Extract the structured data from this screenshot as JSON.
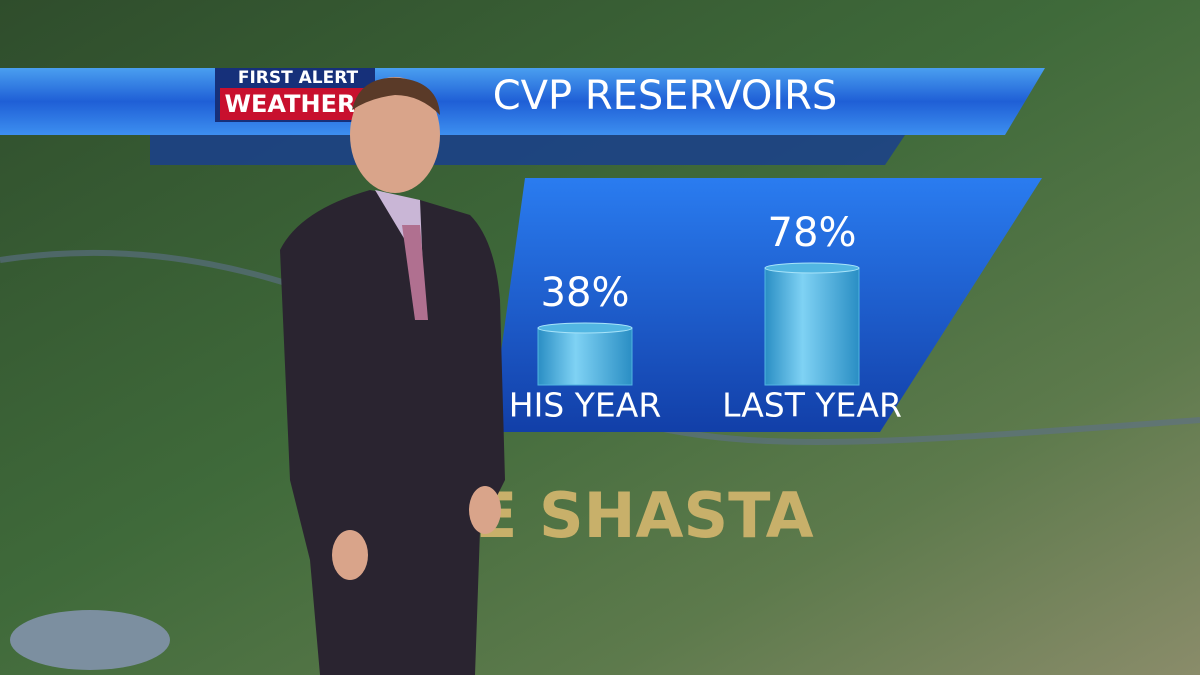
{
  "logo": {
    "line1": "FIRST ALERT",
    "line2": "WEATHER"
  },
  "map_label": "E SHASTA",
  "chart_data": {
    "type": "bar",
    "title": "CVP RESERVOIRS",
    "categories": [
      "HIS YEAR",
      "LAST YEAR"
    ],
    "values": [
      38,
      78
    ],
    "value_labels": [
      "38%",
      "78%"
    ],
    "color": "#52b6e2"
  }
}
